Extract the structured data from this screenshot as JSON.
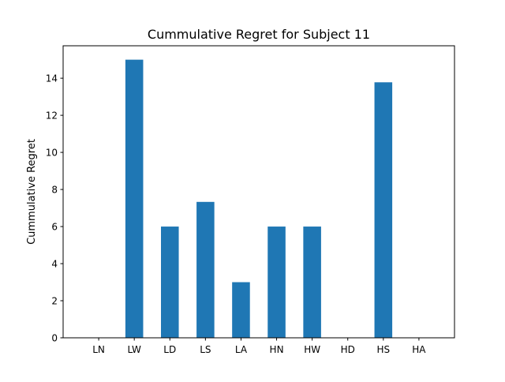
{
  "chart_data": {
    "type": "bar",
    "title": "Cummulative Regret for Subject 11",
    "xlabel": "",
    "ylabel": "Cummulative Regret",
    "categories": [
      "LN",
      "LW",
      "LD",
      "LS",
      "LA",
      "HN",
      "HW",
      "HD",
      "HS",
      "HA"
    ],
    "values": [
      0,
      15,
      6,
      7.33,
      3,
      6,
      6,
      0,
      13.78,
      0
    ],
    "ylim": [
      0,
      15.75
    ],
    "yticks": [
      0,
      2,
      4,
      6,
      8,
      10,
      12,
      14
    ],
    "bar_color": "#1f77b4",
    "grid": false,
    "legend": "none"
  }
}
